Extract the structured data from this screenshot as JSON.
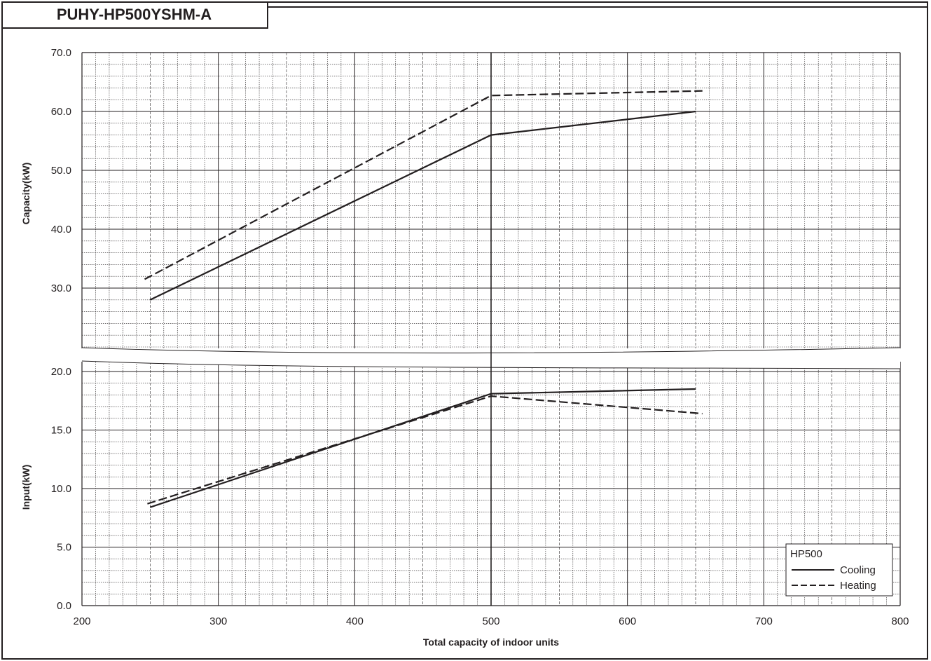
{
  "header": {
    "model": "PUHY-HP500YSHM-A"
  },
  "chart_data": [
    {
      "type": "line",
      "panel": "capacity",
      "ylabel": "Capacity(kW)",
      "y_ticks": [
        "70.0",
        "60.0",
        "50.0",
        "40.0",
        "30.0"
      ],
      "y_tick_values": [
        70,
        60,
        50,
        40,
        30
      ],
      "ylim": [
        20,
        70
      ],
      "xlim": [
        200,
        800
      ],
      "series": [
        {
          "name": "Cooling",
          "style": "solid",
          "x": [
            250,
            500,
            650
          ],
          "values": [
            28.0,
            56.0,
            60.0
          ]
        },
        {
          "name": "Heating",
          "style": "dashed",
          "x": [
            246,
            500,
            655
          ],
          "values": [
            31.5,
            62.7,
            63.5
          ]
        }
      ]
    },
    {
      "type": "line",
      "panel": "input",
      "ylabel": "Input(kW)",
      "y_ticks": [
        "20.0",
        "15.0",
        "10.0",
        "5.0",
        "0.0"
      ],
      "y_tick_values": [
        20,
        15,
        10,
        5,
        0
      ],
      "ylim": [
        0,
        21
      ],
      "xlim": [
        200,
        800
      ],
      "xlabel": "Total capacity of indoor units",
      "x_ticks": [
        "200",
        "300",
        "400",
        "500",
        "600",
        "700",
        "800"
      ],
      "x_tick_values": [
        200,
        300,
        400,
        500,
        600,
        700,
        800
      ],
      "series": [
        {
          "name": "Cooling",
          "style": "solid",
          "x": [
            250,
            500,
            650
          ],
          "values": [
            8.4,
            18.1,
            18.5
          ]
        },
        {
          "name": "Heating",
          "style": "dashed",
          "x": [
            248,
            500,
            655
          ],
          "values": [
            8.7,
            17.9,
            16.4
          ]
        }
      ]
    }
  ],
  "legend": {
    "title": "HP500",
    "items": [
      {
        "label": "Cooling",
        "style": "solid"
      },
      {
        "label": "Heating",
        "style": "dashed"
      }
    ],
    "placement": "bottom-right"
  },
  "colors": {
    "ink": "#231f20",
    "grid": "#231f20"
  }
}
